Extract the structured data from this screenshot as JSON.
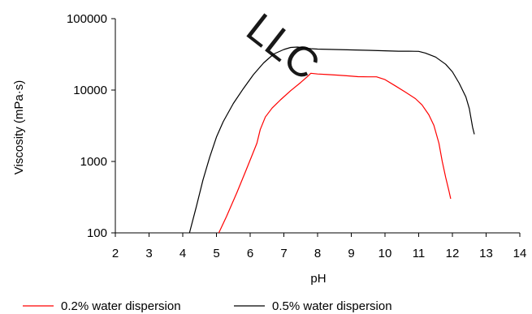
{
  "watermark": "LLC",
  "chart_data": {
    "type": "line",
    "xlabel": "pH",
    "ylabel": "Viscosity (mPa·s)",
    "xlim": [
      2,
      14
    ],
    "ylim": [
      100,
      100000
    ],
    "yscale": "log",
    "xticks": [
      "2",
      "3",
      "4",
      "5",
      "6",
      "7",
      "8",
      "9",
      "10",
      "11",
      "12",
      "13",
      "14"
    ],
    "yticks": [
      {
        "value": 100,
        "label": "100"
      },
      {
        "value": 1000,
        "label": "1000"
      },
      {
        "value": 10000,
        "label": "10000"
      },
      {
        "value": 100000,
        "label": "100000"
      }
    ],
    "grid": false,
    "legend_position": "bottom",
    "series": [
      {
        "name": "0.2% water dispersion",
        "color": "#ff0000",
        "x": [
          5.07,
          5.3,
          5.6,
          5.85,
          6.05,
          6.2,
          6.3,
          6.45,
          6.65,
          6.9,
          7.2,
          7.5,
          7.7,
          7.8,
          8.0,
          8.3,
          8.6,
          8.9,
          9.2,
          9.5,
          9.75,
          10.0,
          10.3,
          10.6,
          10.9,
          11.1,
          11.3,
          11.45,
          11.6,
          11.7,
          11.8,
          11.9,
          11.95
        ],
        "y": [
          100,
          170,
          360,
          700,
          1200,
          1800,
          2800,
          4200,
          5600,
          7300,
          9800,
          12800,
          15500,
          17200,
          16800,
          16500,
          16200,
          15800,
          15400,
          15300,
          15300,
          14000,
          11500,
          9400,
          7600,
          6200,
          4500,
          3200,
          1800,
          1000,
          600,
          380,
          300
        ]
      },
      {
        "name": "0.5% water dispersion",
        "color": "#000000",
        "x": [
          4.2,
          4.4,
          4.6,
          4.8,
          5.0,
          5.2,
          5.5,
          5.8,
          6.1,
          6.4,
          6.7,
          7.0,
          7.2,
          7.4,
          7.6,
          7.8,
          8.0,
          8.5,
          9.0,
          9.5,
          10.0,
          10.4,
          10.7,
          11.0,
          11.2,
          11.5,
          11.8,
          12.0,
          12.2,
          12.4,
          12.5,
          12.6,
          12.65
        ],
        "y": [
          100,
          230,
          550,
          1150,
          2200,
          3600,
          6500,
          10500,
          16500,
          24000,
          32000,
          37000,
          39500,
          40000,
          39000,
          38000,
          37500,
          37000,
          36500,
          36000,
          35500,
          35000,
          35000,
          34800,
          33000,
          29000,
          23000,
          18000,
          12500,
          8000,
          5500,
          3000,
          2400
        ]
      }
    ]
  }
}
